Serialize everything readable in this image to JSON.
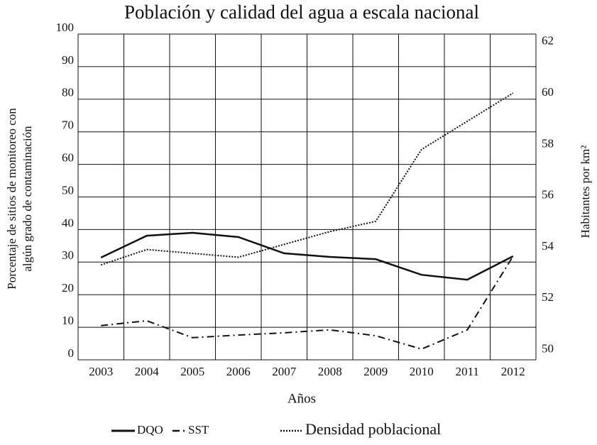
{
  "chart_data": {
    "type": "line",
    "title": "Población y calidad del agua a escala nacional",
    "xlabel": "Años",
    "ylabel": [
      "Porcentaje de sitios de monitoreo con",
      "algún grado de contaminación"
    ],
    "y2label": "Habitantes por km²",
    "categories": [
      "2003",
      "2004",
      "2005",
      "2006",
      "2007",
      "2008",
      "2009",
      "2010",
      "2011",
      "2012"
    ],
    "ylim": [
      0,
      100
    ],
    "yticks": [
      0,
      10,
      20,
      30,
      40,
      50,
      60,
      70,
      80,
      90,
      100
    ],
    "y2lim": [
      49.6,
      62.3
    ],
    "y2ticks": [
      50,
      52,
      54,
      56,
      58,
      60,
      62
    ],
    "grid": true,
    "series": [
      {
        "name": "DQO",
        "color": "#111111",
        "dash": "solid",
        "values": [
          31.4,
          38.1,
          39,
          37.7,
          32.7,
          31.6,
          30.9,
          26.1,
          24.6,
          31.8
        ]
      },
      {
        "name": "SST",
        "color": "#111111",
        "dash": "dashdot",
        "values": [
          10.5,
          12,
          6.8,
          7.6,
          8.3,
          9.2,
          7.4,
          3.3,
          9.2,
          31.8
        ]
      },
      {
        "name": "Densidad poblacional",
        "color": "#111111",
        "dash": "dotted",
        "axis": "y2",
        "values": [
          53.3,
          53.9,
          53.75,
          53.6,
          54.1,
          54.6,
          55.0,
          57.8,
          58.9,
          60.0
        ]
      }
    ]
  }
}
